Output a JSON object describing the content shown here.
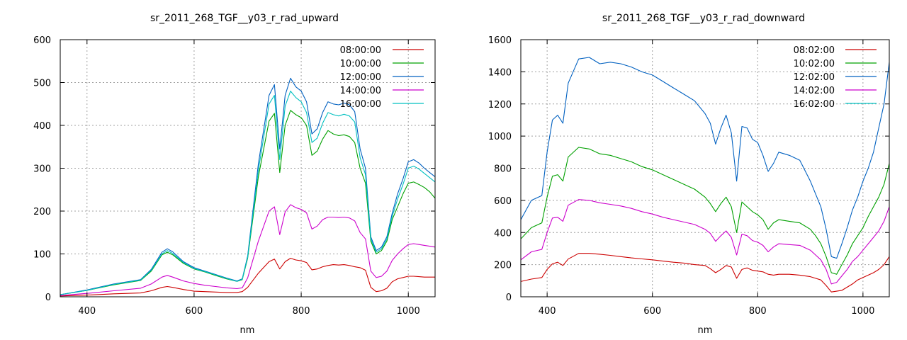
{
  "chart_data": [
    {
      "type": "line",
      "title": "sr_2011_268_TGF__y03_r_rad_upward",
      "xlabel": "nm",
      "ylabel": "",
      "xlim": [
        350,
        1050
      ],
      "ylim": [
        0,
        600
      ],
      "xticks": [
        400,
        600,
        800,
        1000
      ],
      "yticks": [
        0,
        100,
        200,
        300,
        400,
        500,
        600
      ],
      "grid": true,
      "legend": "top-right",
      "series": [
        {
          "name": "08:00:00",
          "color": "#cc0000",
          "x": [
            350,
            400,
            450,
            500,
            520,
            540,
            550,
            560,
            580,
            600,
            620,
            640,
            660,
            680,
            690,
            700,
            720,
            740,
            750,
            760,
            770,
            780,
            790,
            800,
            810,
            820,
            830,
            840,
            850,
            860,
            870,
            880,
            890,
            900,
            910,
            920,
            930,
            940,
            950,
            960,
            970,
            980,
            990,
            1000,
            1010,
            1020,
            1030,
            1040,
            1050
          ],
          "y": [
            2,
            4,
            7,
            9,
            14,
            22,
            24,
            22,
            17,
            13,
            12,
            11,
            10,
            10,
            12,
            22,
            55,
            82,
            88,
            65,
            82,
            90,
            86,
            84,
            80,
            63,
            65,
            70,
            73,
            75,
            74,
            75,
            73,
            70,
            68,
            62,
            22,
            12,
            14,
            20,
            35,
            42,
            45,
            48,
            48,
            47,
            46,
            46,
            46
          ]
        },
        {
          "name": "10:00:00",
          "color": "#00a000",
          "x": [
            350,
            400,
            450,
            500,
            520,
            540,
            550,
            560,
            580,
            600,
            620,
            640,
            660,
            680,
            690,
            700,
            720,
            740,
            750,
            760,
            770,
            780,
            790,
            800,
            810,
            820,
            830,
            840,
            850,
            860,
            870,
            880,
            890,
            900,
            910,
            920,
            930,
            940,
            950,
            960,
            970,
            980,
            990,
            1000,
            1010,
            1020,
            1030,
            1040,
            1050
          ],
          "y": [
            5,
            15,
            28,
            38,
            60,
            98,
            104,
            98,
            78,
            65,
            58,
            50,
            42,
            36,
            40,
            90,
            280,
            410,
            428,
            290,
            400,
            435,
            425,
            418,
            400,
            330,
            340,
            368,
            388,
            380,
            376,
            378,
            374,
            360,
            300,
            265,
            130,
            100,
            108,
            130,
            180,
            210,
            240,
            265,
            268,
            262,
            255,
            245,
            230
          ]
        },
        {
          "name": "12:00:00",
          "color": "#0060c0",
          "x": [
            350,
            400,
            450,
            500,
            520,
            540,
            550,
            560,
            580,
            600,
            620,
            640,
            660,
            680,
            690,
            700,
            720,
            740,
            750,
            760,
            770,
            780,
            790,
            800,
            810,
            820,
            830,
            840,
            850,
            860,
            870,
            880,
            890,
            900,
            910,
            920,
            930,
            940,
            950,
            960,
            970,
            980,
            990,
            1000,
            1010,
            1020,
            1030,
            1040,
            1050
          ],
          "y": [
            5,
            16,
            30,
            40,
            64,
            104,
            112,
            105,
            82,
            68,
            60,
            52,
            44,
            37,
            42,
            95,
            310,
            470,
            495,
            345,
            470,
            510,
            490,
            480,
            455,
            380,
            392,
            430,
            455,
            450,
            448,
            452,
            448,
            432,
            345,
            300,
            140,
            108,
            116,
            140,
            195,
            240,
            275,
            315,
            320,
            312,
            300,
            290,
            280
          ]
        },
        {
          "name": "14:00:00",
          "color": "#cc00cc",
          "x": [
            350,
            400,
            450,
            500,
            520,
            540,
            550,
            560,
            580,
            600,
            620,
            640,
            660,
            680,
            690,
            700,
            720,
            740,
            750,
            760,
            770,
            780,
            790,
            800,
            810,
            820,
            830,
            840,
            850,
            860,
            870,
            880,
            890,
            900,
            910,
            920,
            930,
            940,
            950,
            960,
            970,
            980,
            990,
            1000,
            1010,
            1020,
            1030,
            1040,
            1050
          ],
          "y": [
            3,
            8,
            14,
            20,
            30,
            46,
            50,
            46,
            37,
            31,
            27,
            24,
            21,
            19,
            21,
            44,
            130,
            200,
            210,
            145,
            198,
            215,
            208,
            204,
            196,
            158,
            165,
            180,
            186,
            186,
            185,
            186,
            184,
            177,
            150,
            135,
            60,
            45,
            48,
            60,
            85,
            100,
            112,
            122,
            124,
            122,
            120,
            118,
            116
          ]
        },
        {
          "name": "16:00:00",
          "color": "#00c0c0",
          "x": [
            350,
            400,
            450,
            500,
            520,
            540,
            550,
            560,
            580,
            600,
            620,
            640,
            660,
            680,
            690,
            700,
            720,
            740,
            750,
            760,
            770,
            780,
            790,
            800,
            810,
            820,
            830,
            840,
            850,
            860,
            870,
            880,
            890,
            900,
            910,
            920,
            930,
            940,
            950,
            960,
            970,
            980,
            990,
            1000,
            1010,
            1020,
            1030,
            1040,
            1050
          ],
          "y": [
            5,
            15,
            29,
            39,
            62,
            100,
            108,
            101,
            80,
            66,
            59,
            51,
            43,
            36,
            41,
            92,
            295,
            450,
            470,
            320,
            445,
            480,
            465,
            455,
            430,
            360,
            370,
            405,
            430,
            425,
            422,
            426,
            422,
            408,
            325,
            285,
            135,
            104,
            112,
            135,
            188,
            228,
            262,
            300,
            305,
            298,
            288,
            278,
            268
          ]
        }
      ]
    },
    {
      "type": "line",
      "title": "sr_2011_268_TGF__y03_r_rad_downward",
      "xlabel": "nm",
      "ylabel": "",
      "xlim": [
        350,
        1050
      ],
      "ylim": [
        0,
        1600
      ],
      "xticks": [
        400,
        600,
        800,
        1000
      ],
      "yticks": [
        0,
        200,
        400,
        600,
        800,
        1000,
        1200,
        1400,
        1600
      ],
      "grid": true,
      "legend": "top-right",
      "series": [
        {
          "name": "08:02:00",
          "color": "#cc0000",
          "x": [
            350,
            370,
            390,
            400,
            410,
            420,
            430,
            440,
            460,
            480,
            500,
            520,
            540,
            560,
            580,
            600,
            620,
            640,
            660,
            680,
            700,
            710,
            720,
            730,
            740,
            750,
            760,
            770,
            780,
            790,
            800,
            810,
            820,
            830,
            840,
            860,
            880,
            900,
            910,
            920,
            930,
            940,
            950,
            960,
            970,
            980,
            990,
            1000,
            1010,
            1020,
            1030,
            1040,
            1050
          ],
          "y": [
            95,
            110,
            120,
            170,
            205,
            215,
            195,
            235,
            270,
            270,
            265,
            258,
            250,
            242,
            236,
            230,
            222,
            215,
            210,
            200,
            195,
            175,
            150,
            170,
            195,
            185,
            115,
            170,
            180,
            165,
            160,
            155,
            140,
            135,
            140,
            140,
            135,
            125,
            115,
            105,
            70,
            30,
            35,
            40,
            60,
            80,
            105,
            120,
            135,
            150,
            170,
            200,
            250
          ]
        },
        {
          "name": "10:02:00",
          "color": "#00a000",
          "x": [
            350,
            370,
            390,
            400,
            410,
            420,
            430,
            440,
            460,
            480,
            500,
            520,
            540,
            560,
            580,
            600,
            620,
            640,
            660,
            680,
            700,
            710,
            720,
            730,
            740,
            750,
            760,
            770,
            780,
            790,
            800,
            810,
            820,
            830,
            840,
            860,
            880,
            900,
            910,
            920,
            930,
            940,
            950,
            960,
            970,
            980,
            990,
            1000,
            1010,
            1020,
            1030,
            1040,
            1050
          ],
          "y": [
            360,
            430,
            460,
            620,
            750,
            760,
            720,
            870,
            930,
            920,
            890,
            880,
            860,
            840,
            810,
            790,
            760,
            730,
            700,
            670,
            620,
            580,
            530,
            580,
            620,
            560,
            400,
            590,
            560,
            530,
            510,
            480,
            420,
            460,
            480,
            470,
            460,
            420,
            380,
            330,
            250,
            150,
            140,
            200,
            260,
            330,
            380,
            430,
            500,
            560,
            620,
            700,
            830
          ]
        },
        {
          "name": "12:02:00",
          "color": "#0060c0",
          "x": [
            350,
            370,
            390,
            400,
            410,
            420,
            430,
            440,
            460,
            480,
            500,
            520,
            540,
            560,
            580,
            600,
            620,
            640,
            660,
            680,
            700,
            710,
            720,
            730,
            740,
            750,
            760,
            770,
            780,
            790,
            800,
            810,
            820,
            830,
            840,
            860,
            880,
            900,
            910,
            920,
            930,
            940,
            950,
            960,
            970,
            980,
            990,
            1000,
            1010,
            1020,
            1030,
            1040,
            1050
          ],
          "y": [
            480,
            600,
            630,
            900,
            1100,
            1130,
            1080,
            1330,
            1480,
            1490,
            1450,
            1460,
            1450,
            1430,
            1400,
            1380,
            1340,
            1300,
            1260,
            1220,
            1140,
            1080,
            950,
            1050,
            1130,
            1020,
            720,
            1060,
            1050,
            980,
            960,
            880,
            780,
            830,
            900,
            880,
            850,
            720,
            640,
            560,
            420,
            250,
            240,
            330,
            430,
            540,
            620,
            720,
            800,
            900,
            1050,
            1200,
            1460
          ]
        },
        {
          "name": "14:02:00",
          "color": "#cc00cc",
          "x": [
            350,
            370,
            390,
            400,
            410,
            420,
            430,
            440,
            460,
            480,
            500,
            520,
            540,
            560,
            580,
            600,
            620,
            640,
            660,
            680,
            700,
            710,
            720,
            730,
            740,
            750,
            760,
            770,
            780,
            790,
            800,
            810,
            820,
            830,
            840,
            860,
            880,
            900,
            910,
            920,
            930,
            940,
            950,
            960,
            970,
            980,
            990,
            1000,
            1010,
            1020,
            1030,
            1040,
            1050
          ],
          "y": [
            230,
            280,
            295,
            400,
            490,
            495,
            470,
            570,
            605,
            600,
            585,
            575,
            565,
            550,
            530,
            515,
            495,
            480,
            465,
            450,
            420,
            395,
            345,
            380,
            410,
            370,
            260,
            390,
            380,
            350,
            340,
            320,
            280,
            310,
            330,
            325,
            320,
            290,
            260,
            230,
            170,
            80,
            90,
            130,
            170,
            220,
            250,
            290,
            330,
            370,
            410,
            470,
            560
          ]
        },
        {
          "name": "16:02:00",
          "color": "#00c0c0",
          "x": [
            350,
            400,
            450,
            500,
            550,
            600,
            650,
            700,
            750,
            800,
            850,
            900,
            940,
            950,
            1000,
            1050
          ],
          "y": [
            0,
            0,
            0,
            0,
            0,
            0,
            0,
            0,
            0,
            0,
            0,
            0,
            0,
            0,
            0,
            0
          ]
        }
      ]
    }
  ]
}
